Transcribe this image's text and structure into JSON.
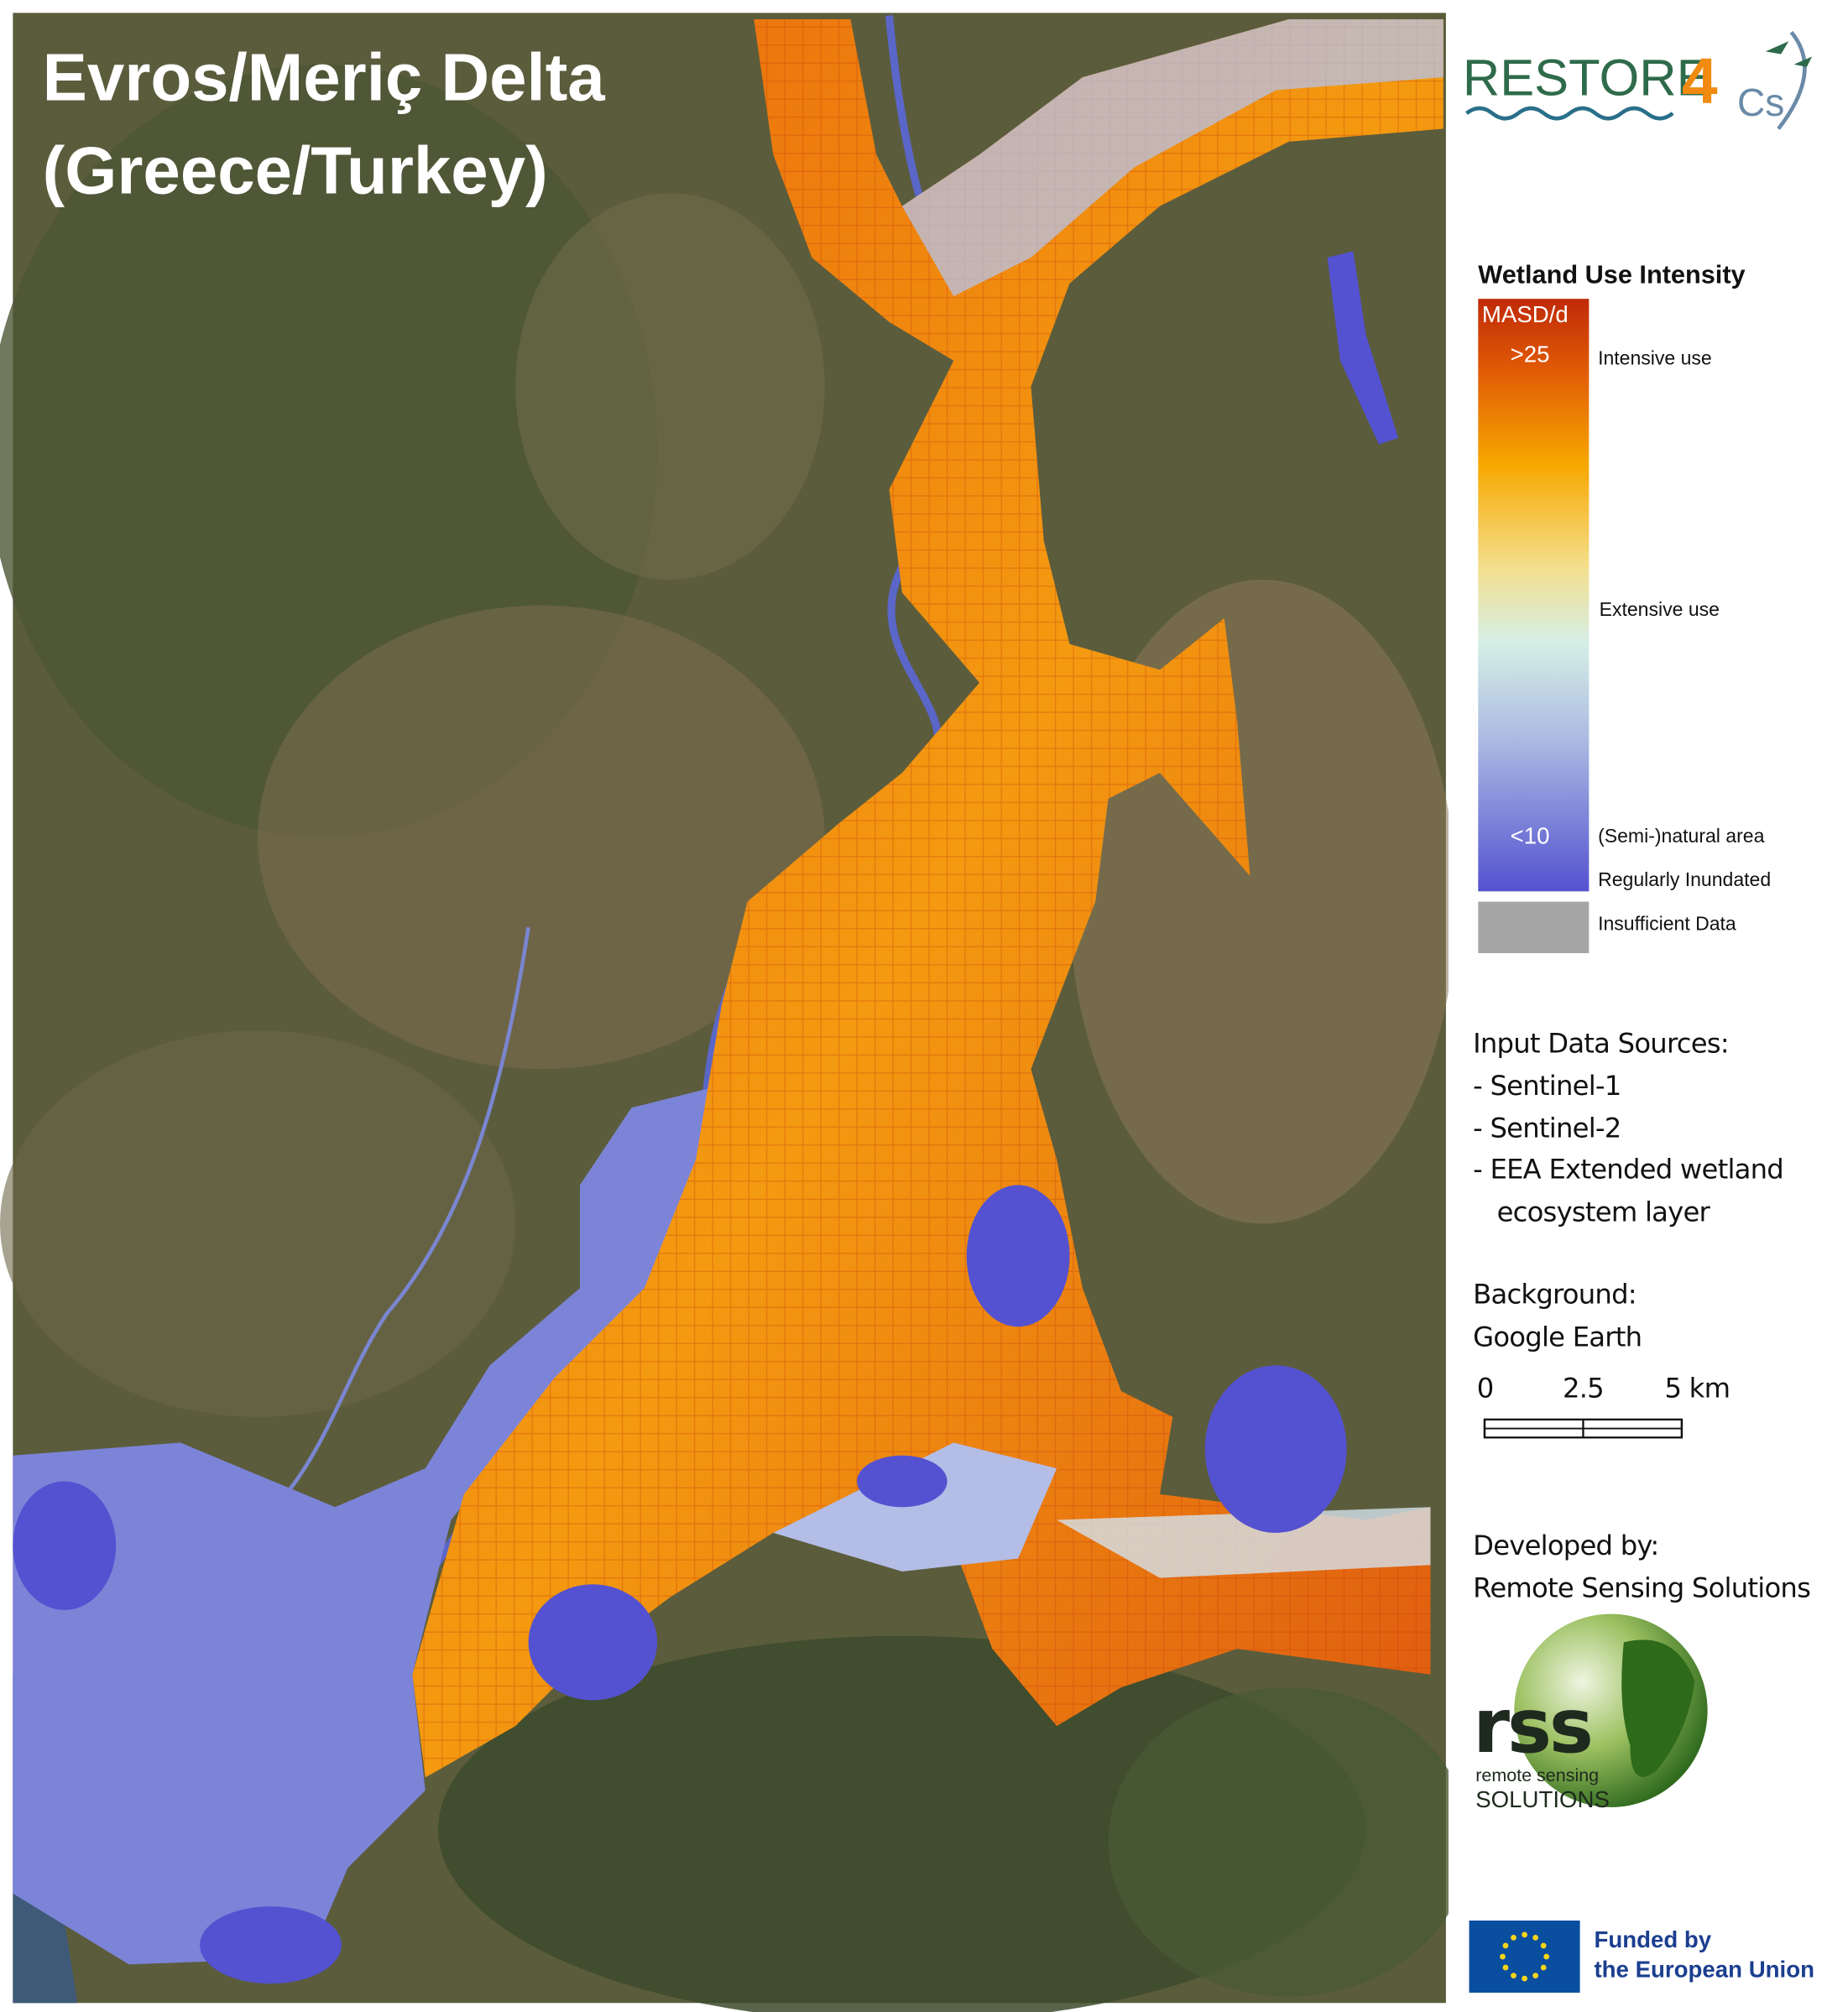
{
  "title": {
    "line1": "Evros/Meriç Delta",
    "line2": "(Greece/Turkey)"
  },
  "logo": {
    "word": "RESTORE",
    "digit": "4",
    "suffix": "Cs"
  },
  "legend": {
    "title": "Wetland Use Intensity",
    "unit": "MASD/d",
    "top_value": ">25",
    "bottom_value": "<10",
    "labels": {
      "intensive": "Intensive use",
      "extensive": "Extensive use",
      "natural": "(Semi-)natural area",
      "inundated": "Regularly Inundated",
      "insufficient": "Insufficient Data"
    }
  },
  "sources": {
    "heading": "Input Data Sources:",
    "items": [
      "- Sentinel-1",
      "- Sentinel-2",
      "- EEA Extended wetland",
      "   ecosystem layer"
    ]
  },
  "background": {
    "heading": "Background:",
    "value": "Google Earth"
  },
  "scale_bar": {
    "ticks": [
      0,
      2.5,
      {
        "value": 5,
        "label": "5 km"
      }
    ]
  },
  "developer": {
    "heading": "Developed by:",
    "name": "Remote Sensing Solutions"
  },
  "rss_logo": {
    "mark": "rss",
    "line1": "remote sensing",
    "line2": "SOLUTIONS"
  },
  "funding": {
    "line1": "Funded by",
    "line2": "the European Union"
  }
}
